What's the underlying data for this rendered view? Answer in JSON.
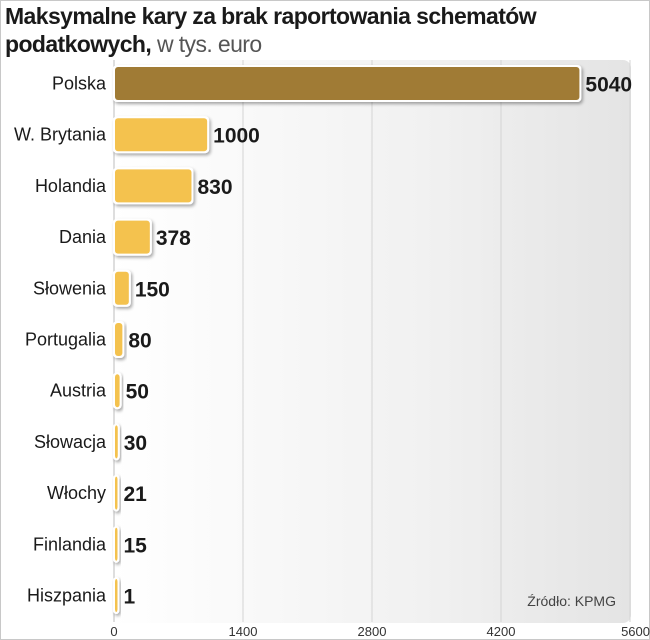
{
  "chart_data": {
    "type": "bar",
    "orientation": "horizontal",
    "title": "Maksymalne kary za brak raportowania schematów podatkowych,",
    "subtitle": "w tys. euro",
    "categories": [
      "Polska",
      "W. Brytania",
      "Holandia",
      "Dania",
      "Słowenia",
      "Portugalia",
      "Austria",
      "Słowacja",
      "Włochy",
      "Finlandia",
      "Hiszpania"
    ],
    "values": [
      5040,
      1000,
      830,
      378,
      150,
      80,
      50,
      30,
      21,
      15,
      1
    ],
    "value_labels": [
      "5040",
      "1000",
      "830",
      "378",
      "150",
      "80",
      "50",
      "30",
      "21",
      "15",
      "1"
    ],
    "xlim": [
      0,
      5600
    ],
    "xticks": [
      0,
      1400,
      2800,
      4200,
      5600
    ],
    "xtick_labels": [
      "0",
      "1400",
      "2800",
      "4200",
      "5600"
    ],
    "grid": true,
    "source": "Źródło: KPMG",
    "highlight_category": "Polska",
    "colors": {
      "highlight": "#a07b35",
      "bar": "#f4c24e",
      "grid": "#d4d4d4"
    }
  }
}
